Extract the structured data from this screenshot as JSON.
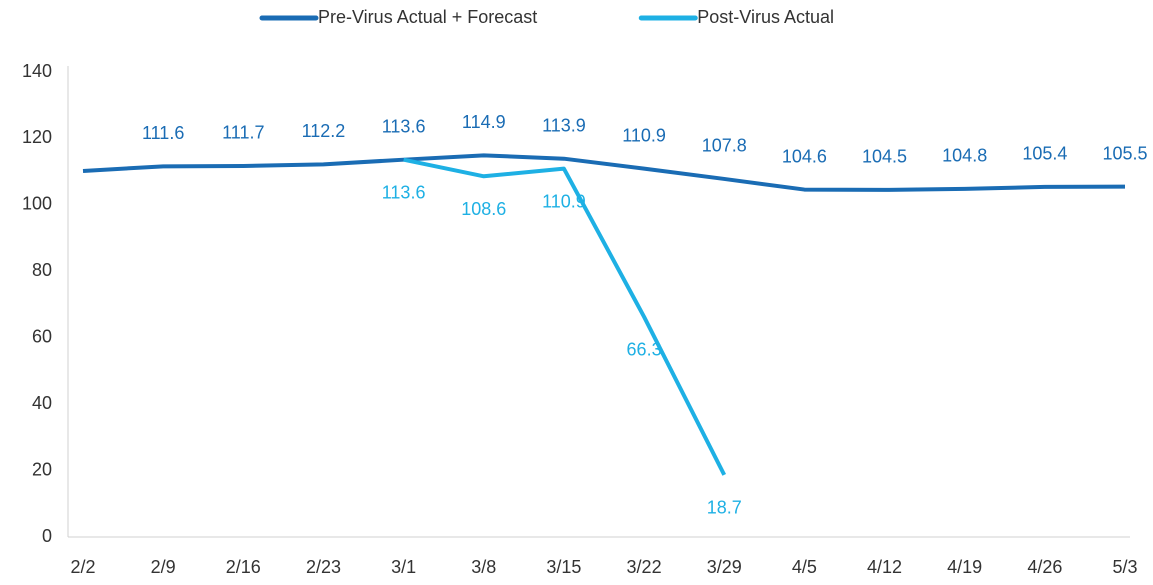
{
  "chart_data": {
    "type": "line",
    "categories": [
      "2/2",
      "2/9",
      "2/16",
      "2/23",
      "3/1",
      "3/8",
      "3/15",
      "3/22",
      "3/29",
      "4/5",
      "4/12",
      "4/19",
      "4/26",
      "5/3"
    ],
    "series": [
      {
        "name": "Pre-Virus Actual + Forecast",
        "color": "#1a6cb4",
        "label_position": "above",
        "values": [
          110.2,
          111.6,
          111.7,
          112.2,
          113.6,
          114.9,
          113.9,
          110.9,
          107.8,
          104.6,
          104.5,
          104.8,
          105.4,
          105.5
        ],
        "value_labels": [
          null,
          "111.6",
          "111.7",
          "112.2",
          "113.6",
          "114.9",
          "113.9",
          "110.9",
          "107.8",
          "104.6",
          "104.5",
          "104.8",
          "105.4",
          "105.5"
        ]
      },
      {
        "name": "Post-Virus Actual",
        "color": "#1eb0e4",
        "label_position": "below",
        "values": [
          null,
          null,
          null,
          null,
          113.6,
          108.6,
          110.9,
          66.3,
          18.7,
          null,
          null,
          null,
          null,
          null
        ],
        "value_labels": [
          null,
          null,
          null,
          null,
          "113.6",
          "108.6",
          "110.9",
          "66.3",
          "18.7",
          null,
          null,
          null,
          null,
          null
        ]
      }
    ],
    "ylim": [
      0,
      140
    ],
    "yticks": [
      0,
      20,
      40,
      60,
      80,
      100,
      120,
      140
    ],
    "grid": false,
    "legend": "top"
  }
}
